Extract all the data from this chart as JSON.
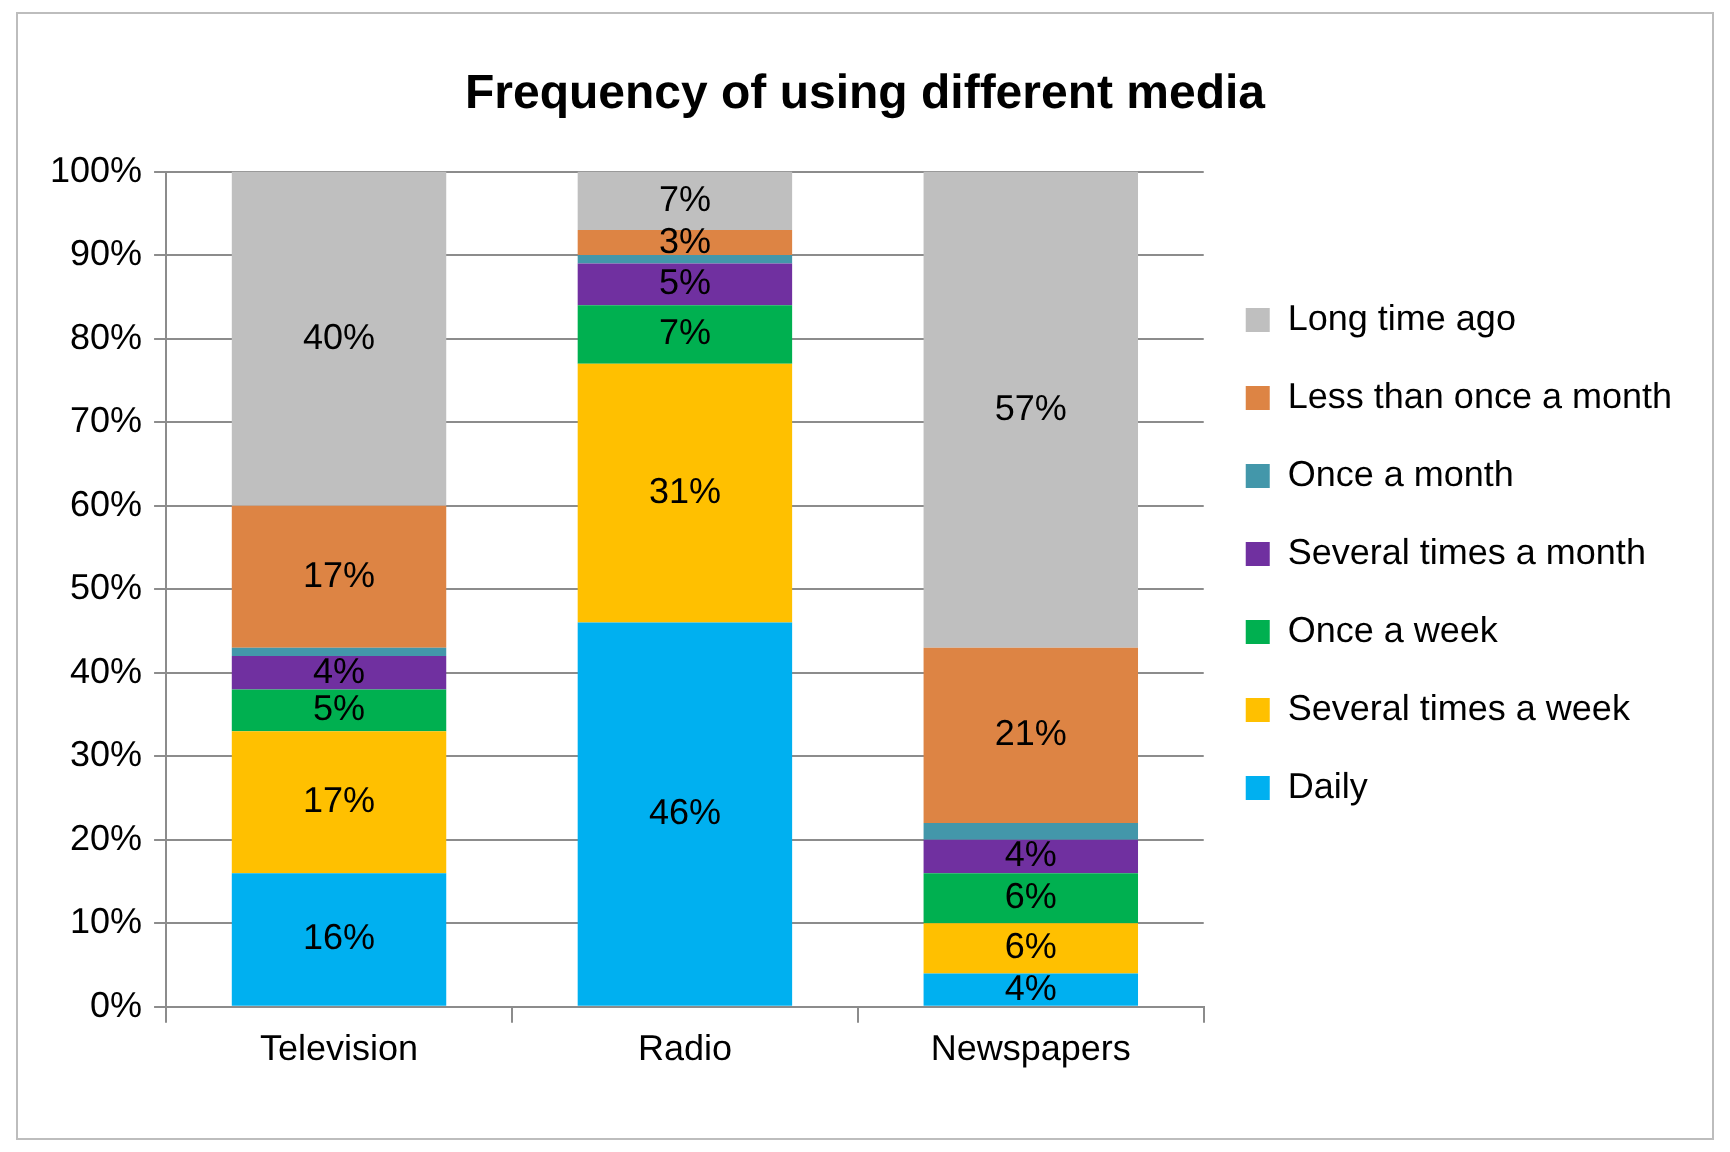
{
  "chart_data": {
    "type": "bar",
    "title": "Frequency of using different media",
    "categories": [
      "Television",
      "Radio",
      "Newspapers"
    ],
    "stacked": true,
    "legend": "right",
    "grid": "y",
    "ylim": [
      0,
      100
    ],
    "yticks": [
      {
        "value": 0,
        "label": "0%"
      },
      {
        "value": 10,
        "label": "10%"
      },
      {
        "value": 20,
        "label": "20%"
      },
      {
        "value": 30,
        "label": "30%"
      },
      {
        "value": 40,
        "label": "40%"
      },
      {
        "value": 50,
        "label": "50%"
      },
      {
        "value": 60,
        "label": "60%"
      },
      {
        "value": 70,
        "label": "70%"
      },
      {
        "value": 80,
        "label": "80%"
      },
      {
        "value": 90,
        "label": "90%"
      },
      {
        "value": 100,
        "label": "100%"
      }
    ],
    "series": [
      {
        "name": "Daily",
        "color": "#00b0f0",
        "values": [
          16,
          46,
          4
        ],
        "value_labels": [
          "16%",
          "46%",
          "4%"
        ]
      },
      {
        "name": "Several times a week",
        "color": "#ffc000",
        "values": [
          17,
          31,
          6
        ],
        "value_labels": [
          "17%",
          "31%",
          "6%"
        ]
      },
      {
        "name": "Once a week",
        "color": "#00b050",
        "values": [
          5,
          7,
          6
        ],
        "value_labels": [
          "5%",
          "7%",
          "6%"
        ]
      },
      {
        "name": "Several times a month",
        "color": "#7030a0",
        "values": [
          4,
          5,
          4
        ],
        "value_labels": [
          "4%",
          "5%",
          "4%"
        ]
      },
      {
        "name": "Once a month",
        "color": "#4397aa",
        "values": [
          1,
          1,
          2
        ],
        "value_labels": [
          null,
          null,
          null
        ]
      },
      {
        "name": "Less than once a month",
        "color": "#dd8444",
        "values": [
          17,
          3,
          21
        ],
        "value_labels": [
          "17%",
          "3%",
          "21%"
        ]
      },
      {
        "name": "Long time ago",
        "color": "#bfbfbf",
        "values": [
          40,
          7,
          57
        ],
        "value_labels": [
          "40%",
          "7%",
          "57%"
        ]
      }
    ]
  }
}
